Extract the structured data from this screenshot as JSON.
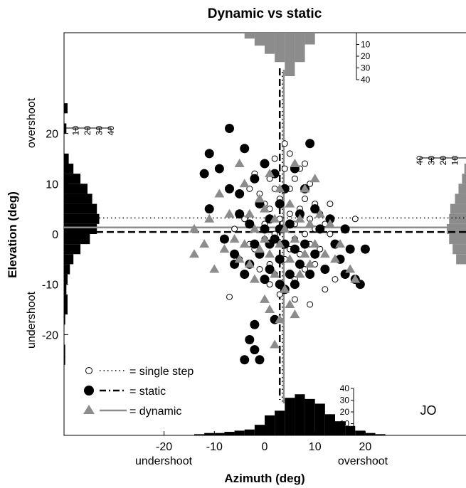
{
  "title": "Dynamic vs static",
  "colors": {
    "static": "#000000",
    "dynamic": "#8c8c8c",
    "single": "#000000",
    "background": "#ffffff"
  },
  "chart_data": {
    "type": "scatter",
    "title": "Dynamic vs static",
    "xlabel": "Azimuth (deg)",
    "ylabel": "Elevation (deg)",
    "x_direction_labels": {
      "negative": "undershoot",
      "positive": "overshoot"
    },
    "y_direction_labels": {
      "negative": "undershoot",
      "positive": "overshoot"
    },
    "xlim": [
      -40,
      40
    ],
    "ylim": [
      -40,
      40
    ],
    "x_ticks": [
      -20,
      -10,
      0,
      10,
      20
    ],
    "y_ticks": [
      -20,
      -10,
      0,
      10,
      20
    ],
    "annotation": "JO",
    "grid": false,
    "legend_position": "bottom-left",
    "legend": [
      {
        "symbol": "open circle",
        "line": "dotted",
        "label": "= single step"
      },
      {
        "symbol": "filled circle",
        "line": "dashed",
        "label": "= static"
      },
      {
        "symbol": "triangle",
        "line": "solid",
        "label": "= dynamic"
      }
    ],
    "mean_lines": {
      "single_step": {
        "x": 3.5,
        "y": 3.2
      },
      "static": {
        "x": 3.0,
        "y": 0.4
      },
      "dynamic": {
        "x": 3.8,
        "y": 1.3
      }
    },
    "marginal_histograms": {
      "bin_width": 2,
      "count_ticks": [
        10,
        20,
        30,
        40
      ],
      "static_azimuth": {
        "centers": [
          -13,
          -11,
          -9,
          -7,
          -5,
          -3,
          -1,
          1,
          3,
          5,
          7,
          9,
          11,
          13,
          15,
          17,
          19,
          21,
          23
        ],
        "counts": [
          1,
          2,
          2,
          3,
          4,
          5,
          9,
          17,
          21,
          32,
          35,
          31,
          27,
          18,
          12,
          8,
          4,
          2,
          1
        ]
      },
      "static_elevation": {
        "centers": [
          -25,
          -23,
          -17,
          -15,
          -13,
          -11,
          -9,
          -7,
          -5,
          -3,
          -1,
          1,
          3,
          5,
          7,
          9,
          11,
          13,
          15,
          21,
          25
        ],
        "counts": [
          1,
          1,
          1,
          3,
          3,
          2,
          3,
          5,
          8,
          14,
          22,
          28,
          30,
          28,
          24,
          20,
          14,
          8,
          4,
          2,
          3
        ]
      },
      "dynamic_azimuth": {
        "centers": [
          -3,
          -1,
          1,
          3,
          5,
          7,
          9
        ],
        "counts": [
          5,
          11,
          18,
          25,
          37,
          25,
          10
        ]
      },
      "dynamic_elevation": {
        "centers": [
          -5,
          -3,
          -1,
          1,
          3,
          5,
          7,
          9,
          11,
          13
        ],
        "counts": [
          9,
          12,
          15,
          17,
          15,
          14,
          10,
          7,
          4,
          2
        ]
      }
    },
    "series": [
      {
        "name": "single step",
        "marker": "open circle",
        "points": [
          [
            -7,
            -12.5
          ],
          [
            -4,
            3
          ],
          [
            -2,
            -3
          ],
          [
            -1,
            8
          ],
          [
            0,
            2
          ],
          [
            0,
            -1
          ],
          [
            1,
            5
          ],
          [
            1,
            -6
          ],
          [
            1,
            11
          ],
          [
            2,
            0
          ],
          [
            2,
            15
          ],
          [
            2,
            -8
          ],
          [
            3,
            3
          ],
          [
            3,
            -2
          ],
          [
            3,
            7
          ],
          [
            4,
            1
          ],
          [
            4,
            -5
          ],
          [
            4,
            13
          ],
          [
            5,
            4
          ],
          [
            5,
            -3
          ],
          [
            5,
            16
          ],
          [
            5,
            9
          ],
          [
            6,
            2
          ],
          [
            6,
            -1
          ],
          [
            6,
            11
          ],
          [
            6,
            -9
          ],
          [
            7,
            5
          ],
          [
            7,
            -4
          ],
          [
            7,
            13
          ],
          [
            8,
            0
          ],
          [
            8,
            7
          ],
          [
            8,
            -7
          ],
          [
            9,
            3
          ],
          [
            9,
            -2
          ],
          [
            9,
            10
          ],
          [
            10,
            1
          ],
          [
            10,
            -6
          ],
          [
            10,
            6
          ],
          [
            11,
            4
          ],
          [
            11,
            -3
          ],
          [
            12,
            -11
          ],
          [
            12,
            2
          ],
          [
            13,
            6
          ],
          [
            14,
            -9
          ],
          [
            -5,
            -5
          ],
          [
            -3,
            9
          ],
          [
            -2,
            12
          ],
          [
            -1,
            -7
          ],
          [
            0,
            6
          ],
          [
            1,
            -10
          ],
          [
            2,
            9
          ],
          [
            3,
            -12
          ],
          [
            4,
            18
          ],
          [
            6,
            -13
          ],
          [
            8,
            14
          ],
          [
            9,
            -14
          ],
          [
            13,
            0
          ],
          [
            18,
            3
          ],
          [
            -6,
            1
          ],
          [
            -3,
            -2
          ]
        ]
      },
      {
        "name": "static",
        "marker": "filled circle",
        "points": [
          [
            -11,
            16
          ],
          [
            -12,
            12
          ],
          [
            -11,
            5
          ],
          [
            -9,
            13
          ],
          [
            -7,
            21
          ],
          [
            -7,
            9
          ],
          [
            -6,
            -4
          ],
          [
            -8,
            -1
          ],
          [
            -5,
            4
          ],
          [
            -4,
            17
          ],
          [
            -4,
            -8
          ],
          [
            -3,
            -6
          ],
          [
            -3,
            2
          ],
          [
            -2,
            11
          ],
          [
            -2,
            -2
          ],
          [
            -1,
            6
          ],
          [
            -1,
            -4
          ],
          [
            0,
            14
          ],
          [
            0,
            1
          ],
          [
            0,
            -9
          ],
          [
            1,
            3
          ],
          [
            1,
            -7
          ],
          [
            2,
            12
          ],
          [
            2,
            -1
          ],
          [
            3,
            6
          ],
          [
            3,
            -5
          ],
          [
            4,
            -2
          ],
          [
            4,
            9
          ],
          [
            5,
            2
          ],
          [
            5,
            -8
          ],
          [
            6,
            13
          ],
          [
            6,
            -3
          ],
          [
            7,
            4
          ],
          [
            7,
            -6
          ],
          [
            8,
            9
          ],
          [
            8,
            -2
          ],
          [
            9,
            18
          ],
          [
            9,
            -8
          ],
          [
            10,
            5
          ],
          [
            10,
            -4
          ],
          [
            11,
            1
          ],
          [
            12,
            -7
          ],
          [
            13,
            3
          ],
          [
            14,
            -2
          ],
          [
            15,
            -5
          ],
          [
            16,
            -8
          ],
          [
            16,
            1
          ],
          [
            17,
            -3
          ],
          [
            18,
            -9
          ],
          [
            19,
            -10
          ],
          [
            20,
            -3
          ],
          [
            -2,
            -18
          ],
          [
            -3,
            -21
          ],
          [
            -2,
            -23
          ],
          [
            -4,
            -25
          ],
          [
            -1,
            -25
          ],
          [
            2,
            -17
          ],
          [
            3,
            -10
          ],
          [
            4,
            -11
          ],
          [
            6,
            -10
          ],
          [
            -6,
            -6
          ],
          [
            -5,
            8
          ],
          [
            1,
            -2
          ],
          [
            3,
            1
          ]
        ]
      },
      {
        "name": "dynamic",
        "marker": "triangle",
        "points": [
          [
            -14,
            1
          ],
          [
            -14,
            -4
          ],
          [
            -12,
            -2
          ],
          [
            -11,
            3
          ],
          [
            -10,
            -7
          ],
          [
            -9,
            8
          ],
          [
            -8,
            -3
          ],
          [
            -7,
            4
          ],
          [
            -6,
            -1
          ],
          [
            -5,
            14
          ],
          [
            -5,
            -5
          ],
          [
            -4,
            10
          ],
          [
            -4,
            -2
          ],
          [
            -3,
            4
          ],
          [
            -3,
            -6
          ],
          [
            -2,
            1
          ],
          [
            -2,
            -9
          ],
          [
            -1,
            7
          ],
          [
            -1,
            -3
          ],
          [
            0,
            5
          ],
          [
            0,
            -1
          ],
          [
            1,
            12
          ],
          [
            1,
            -4
          ],
          [
            2,
            3
          ],
          [
            2,
            -8
          ],
          [
            3,
            -2
          ],
          [
            3,
            9
          ],
          [
            4,
            1
          ],
          [
            4,
            -11
          ],
          [
            5,
            6
          ],
          [
            5,
            -5
          ],
          [
            6,
            14
          ],
          [
            6,
            -1
          ],
          [
            7,
            3
          ],
          [
            7,
            -8
          ],
          [
            8,
            9
          ],
          [
            8,
            -4
          ],
          [
            9,
            2
          ],
          [
            9,
            -6
          ],
          [
            10,
            11
          ],
          [
            10,
            -2
          ],
          [
            11,
            4
          ],
          [
            12,
            -4
          ],
          [
            13,
            2
          ],
          [
            14,
            -5
          ],
          [
            15,
            -2
          ],
          [
            17,
            -7
          ],
          [
            18,
            -9
          ],
          [
            3,
            -17
          ],
          [
            2,
            -22
          ],
          [
            0,
            -13
          ],
          [
            1,
            -15
          ],
          [
            5,
            -14
          ],
          [
            6,
            -16
          ]
        ]
      }
    ]
  }
}
